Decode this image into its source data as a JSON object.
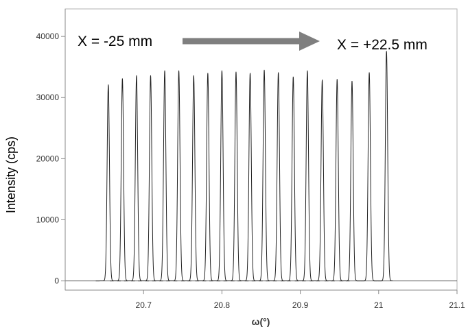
{
  "chart_data": {
    "type": "line",
    "title": "",
    "xlabel": "ω(°)",
    "ylabel": "Intensity (cps)",
    "xlim": [
      20.6,
      21.1
    ],
    "ylim": [
      -1500,
      44500
    ],
    "x_ticks": [
      20.7,
      20.8,
      20.9,
      21,
      21.1
    ],
    "x_tick_labels": [
      "20.7",
      "20.8",
      "20.9",
      "21",
      "21.1"
    ],
    "y_ticks": [
      0,
      10000,
      20000,
      30000,
      40000
    ],
    "y_tick_labels": [
      "0",
      "10000",
      "20000",
      "30000",
      "40000"
    ],
    "grid": false,
    "line_color": "#222222",
    "peak_fwhm_deg": 0.0035,
    "peaks": [
      {
        "center": 20.655,
        "height": 32000
      },
      {
        "center": 20.673,
        "height": 33000
      },
      {
        "center": 20.691,
        "height": 33500
      },
      {
        "center": 20.709,
        "height": 33500
      },
      {
        "center": 20.727,
        "height": 34300
      },
      {
        "center": 20.745,
        "height": 34300
      },
      {
        "center": 20.764,
        "height": 33500
      },
      {
        "center": 20.782,
        "height": 33900
      },
      {
        "center": 20.8,
        "height": 34300
      },
      {
        "center": 20.818,
        "height": 34100
      },
      {
        "center": 20.836,
        "height": 33900
      },
      {
        "center": 20.854,
        "height": 34400
      },
      {
        "center": 20.872,
        "height": 34000
      },
      {
        "center": 20.891,
        "height": 33300
      },
      {
        "center": 20.909,
        "height": 34300
      },
      {
        "center": 20.928,
        "height": 32800
      },
      {
        "center": 20.947,
        "height": 32900
      },
      {
        "center": 20.966,
        "height": 32600
      },
      {
        "center": 20.988,
        "height": 34000
      },
      {
        "center": 21.01,
        "height": 37500
      }
    ],
    "annotations": {
      "start_label": "X = -25 mm",
      "end_label": "X = +22.5 mm",
      "arrow_color": "#7f7f7f",
      "arrow_direction": "right"
    }
  }
}
